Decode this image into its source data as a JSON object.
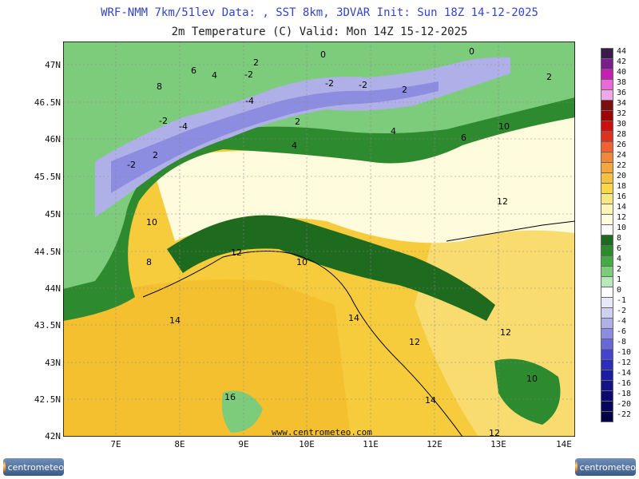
{
  "header": {
    "line1": "WRF-NMM 7km/51lev  Data: , SST 8km, 3DVAR  Init: Sun 18Z 14-12-2025",
    "line2": "2m Temperature (C)  Valid: Mon 14Z 15-12-2025"
  },
  "lat_labels": [
    "47N",
    "46.5N",
    "46N",
    "45.5N",
    "45N",
    "44.5N",
    "44N",
    "43.5N",
    "43N",
    "42.5N",
    "42N"
  ],
  "lon_labels": [
    "7E",
    "8E",
    "9E",
    "10E",
    "11E",
    "12E",
    "13E",
    "14E"
  ],
  "watermark": "www.centrometeo.com",
  "logo_text": "centrometeo",
  "legend": {
    "labels": [
      "44",
      "42",
      "40",
      "38",
      "36",
      "34",
      "32",
      "30",
      "28",
      "26",
      "24",
      "22",
      "20",
      "18",
      "16",
      "14",
      "12",
      "10",
      "8",
      "6",
      "4",
      "2",
      "1",
      "0",
      "-1",
      "-2",
      "-4",
      "-6",
      "-8",
      "-10",
      "-12",
      "-14",
      "-16",
      "-18",
      "-20",
      "-22"
    ],
    "colors": [
      "#3a1c4a",
      "#7a1e8c",
      "#c51fb5",
      "#e86ad6",
      "#f0a8e8",
      "#7a1010",
      "#a00000",
      "#cc1010",
      "#e03020",
      "#f06030",
      "#f08838",
      "#f4a640",
      "#f6c040",
      "#f8d848",
      "#f8e880",
      "#fcf4b8",
      "#fffbdc",
      "#ffffff",
      "#1e6a1e",
      "#2e8a2e",
      "#44aa44",
      "#7ccc7c",
      "#b8e8b8",
      "#ffffff",
      "#e8e8f8",
      "#d0d0f0",
      "#b0b0e8",
      "#8c8ce0",
      "#6868d8",
      "#4444cc",
      "#2c2cb8",
      "#1c1ca0",
      "#141488",
      "#0c0c70",
      "#06065a",
      "#030344"
    ]
  },
  "contour_labels": [
    "0",
    "2",
    "4",
    "6",
    "8",
    "10",
    "12",
    "14",
    "16",
    "-2",
    "-4"
  ]
}
